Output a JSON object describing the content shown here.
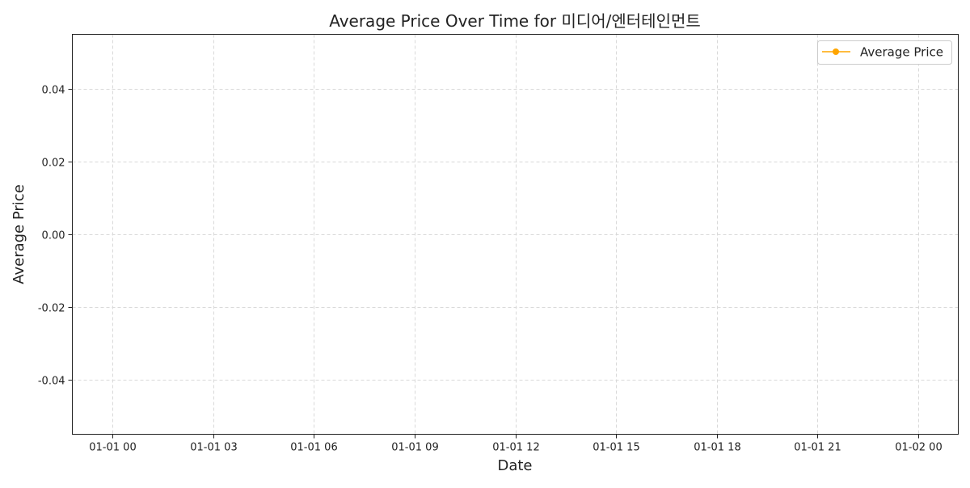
{
  "chart_data": {
    "type": "line",
    "title": "Average Price Over Time for 미디어/엔터테인먼트",
    "xlabel": "Date",
    "ylabel": "Average Price",
    "x_ticks": [
      "01-01 00",
      "01-01 03",
      "01-01 06",
      "01-01 09",
      "01-01 12",
      "01-01 15",
      "01-01 18",
      "01-01 21",
      "01-02 00"
    ],
    "y_ticks": [
      "-0.04",
      "-0.02",
      "0.00",
      "0.02",
      "0.04"
    ],
    "y_tick_values": [
      -0.04,
      -0.02,
      0.0,
      0.02,
      0.04
    ],
    "ylim": [
      -0.055,
      0.055
    ],
    "grid": true,
    "legend_position": "top-right",
    "series": [
      {
        "name": "Average Price",
        "color": "#ffa500",
        "marker": "circle",
        "x": [],
        "y": []
      }
    ]
  }
}
